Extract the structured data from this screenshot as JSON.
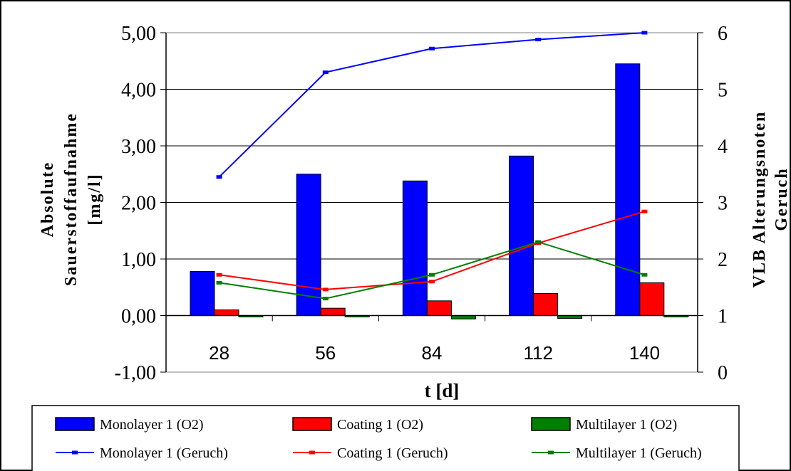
{
  "chart_data": {
    "type": "bar",
    "categories": [
      "28",
      "56",
      "84",
      "112",
      "140"
    ],
    "xlabel": "t [d]",
    "ylabel_left_lines": [
      "Absolute",
      "Sauerstoffaufnahme",
      "[mg/l]"
    ],
    "ylabel_right_lines": [
      "VLB Alterungsnoten",
      "Geruch"
    ],
    "ylim_left": [
      -1,
      5
    ],
    "yticks_left": [
      "-1,00",
      "0,00",
      "1,00",
      "2,00",
      "3,00",
      "4,00",
      "5,00"
    ],
    "ylim_right": [
      0,
      6
    ],
    "yticks_right": [
      "0",
      "1",
      "2",
      "3",
      "4",
      "5",
      "6"
    ],
    "grid": true,
    "legend_position": "bottom",
    "bar_series": [
      {
        "name": "Monolayer 1 (O2)",
        "color": "#0000ff",
        "values": [
          0.78,
          2.5,
          2.38,
          2.82,
          4.45
        ]
      },
      {
        "name": "Coating 1  (O2)",
        "color": "#ff0000",
        "values": [
          0.1,
          0.13,
          0.26,
          0.39,
          0.58
        ]
      },
      {
        "name": "Multilayer 1 (O2)",
        "color": "#008000",
        "values": [
          -0.02,
          0.0,
          -0.06,
          -0.05,
          -0.02
        ]
      }
    ],
    "line_series": [
      {
        "name": "Monolayer 1 (Geruch)",
        "color": "#0000ff",
        "axis": "right",
        "values": [
          3.45,
          5.3,
          5.72,
          5.88,
          6.0
        ]
      },
      {
        "name": "Coating 1 (Geruch)",
        "color": "#ff0000",
        "axis": "right",
        "values": [
          1.72,
          1.46,
          1.6,
          2.28,
          2.84
        ]
      },
      {
        "name": "Multilayer 1 (Geruch)",
        "color": "#008000",
        "axis": "right",
        "values": [
          1.58,
          1.3,
          1.72,
          2.3,
          1.72
        ]
      }
    ]
  }
}
